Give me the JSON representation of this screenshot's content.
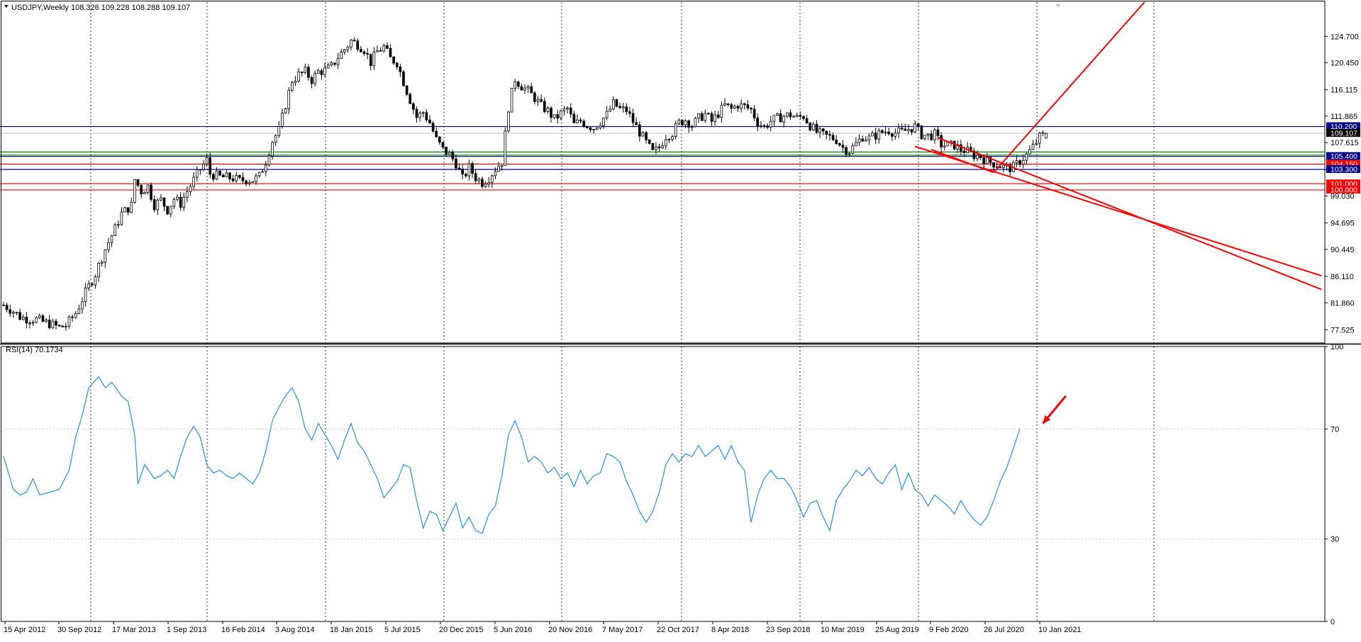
{
  "chart_data": [
    {
      "type": "candlestick",
      "title": "USDJPY,Weekly  108.326 109.228 108.288 109.107",
      "symbol": "USDJPY",
      "timeframe": "Weekly",
      "ohlc_last": {
        "open": 108.326,
        "high": 109.228,
        "low": 108.288,
        "close": 109.107
      },
      "ylim": [
        75.4,
        130.2
      ],
      "y_ticks": [
        124.7,
        120.45,
        116.115,
        111.865,
        107.615,
        103.3,
        99.03,
        94.695,
        90.445,
        86.11,
        81.86,
        77.525
      ],
      "y_tick_labels": [
        "124.700",
        "120.450",
        "116.115",
        "111.865",
        "107.615",
        "103.300",
        "99.030",
        "94.695",
        "90.445",
        "86.110",
        "81.860",
        "77.525"
      ],
      "x_tick_labels": [
        "15 Apr 2012",
        "30 Sep 2012",
        "17 Mar 2013",
        "1 Sep 2013",
        "16 Feb 2014",
        "3 Aug 2014",
        "18 Jan 2015",
        "5 Jul 2015",
        "20 Dec 2015",
        "5 Jun 2016",
        "20 Nov 2016",
        "7 May 2017",
        "22 Oct 2017",
        "8 Apr 2018",
        "23 Sep 2018",
        "10 Mar 2019",
        "25 Aug 2019",
        "9 Feb 2020",
        "26 Jul 2020",
        "10 Jan 2021"
      ],
      "close_path": [
        [
          0,
          81.5
        ],
        [
          3,
          80.5
        ],
        [
          5,
          79.6
        ],
        [
          8,
          79.2
        ],
        [
          10,
          79.2
        ],
        [
          12,
          78.8
        ],
        [
          14,
          78.5
        ],
        [
          17,
          77.9
        ],
        [
          19,
          78.2
        ],
        [
          22,
          80.2
        ],
        [
          25,
          83.5
        ],
        [
          28,
          86.5
        ],
        [
          31,
          90.5
        ],
        [
          34,
          93.8
        ],
        [
          36,
          96.2
        ],
        [
          39,
          97.5
        ],
        [
          40,
          101.7
        ],
        [
          42,
          99.8
        ],
        [
          44,
          100.6
        ],
        [
          46,
          97.6
        ],
        [
          48,
          98.4
        ],
        [
          50,
          96.8
        ],
        [
          52,
          98.6
        ],
        [
          54,
          97.8
        ],
        [
          56,
          99.8
        ],
        [
          58,
          101.6
        ],
        [
          60,
          103.4
        ],
        [
          62,
          104.8
        ],
        [
          63,
          102.6
        ],
        [
          66,
          102.1
        ],
        [
          68,
          102.0
        ],
        [
          70,
          101.9
        ],
        [
          72,
          101.5
        ],
        [
          74,
          101.7
        ],
        [
          76,
          101.6
        ],
        [
          78,
          102.2
        ],
        [
          80,
          104.6
        ],
        [
          82,
          107.9
        ],
        [
          84,
          109.6
        ],
        [
          86,
          113.7
        ],
        [
          88,
          117.6
        ],
        [
          90,
          118.5
        ],
        [
          92,
          119.0
        ],
        [
          94,
          117.7
        ],
        [
          96,
          119.0
        ],
        [
          98,
          119.2
        ],
        [
          100,
          119.8
        ],
        [
          102,
          121.4
        ],
        [
          104,
          122.6
        ],
        [
          106,
          124.0
        ],
        [
          108,
          123.4
        ],
        [
          110,
          122.6
        ],
        [
          112,
          120.5
        ],
        [
          114,
          122.3
        ],
        [
          116,
          123.0
        ],
        [
          118,
          121.1
        ],
        [
          120,
          120.5
        ],
        [
          122,
          117.4
        ],
        [
          124,
          114.5
        ],
        [
          126,
          111.7
        ],
        [
          128,
          112.5
        ],
        [
          130,
          110.8
        ],
        [
          132,
          108.1
        ],
        [
          134,
          106.5
        ],
        [
          136,
          105.7
        ],
        [
          138,
          104.3
        ],
        [
          140,
          101.8
        ],
        [
          142,
          103.6
        ],
        [
          144,
          102.0
        ],
        [
          146,
          101.2
        ],
        [
          148,
          102.0
        ],
        [
          150,
          103.4
        ],
        [
          152,
          104.5
        ],
        [
          154,
          113.3
        ],
        [
          156,
          117.8
        ],
        [
          158,
          116.7
        ],
        [
          160,
          115.9
        ],
        [
          162,
          114.8
        ],
        [
          164,
          113.5
        ],
        [
          166,
          112.7
        ],
        [
          168,
          111.4
        ],
        [
          170,
          112.3
        ],
        [
          172,
          113.1
        ],
        [
          174,
          110.5
        ],
        [
          176,
          111.1
        ],
        [
          178,
          110.4
        ],
        [
          180,
          110.0
        ],
        [
          182,
          111.0
        ],
        [
          184,
          112.1
        ],
        [
          186,
          113.9
        ],
        [
          188,
          113.0
        ],
        [
          190,
          112.8
        ],
        [
          192,
          111.0
        ],
        [
          194,
          109.3
        ],
        [
          196,
          107.6
        ],
        [
          198,
          106.0
        ],
        [
          200,
          106.8
        ],
        [
          202,
          108.7
        ],
        [
          204,
          109.2
        ],
        [
          206,
          110.8
        ],
        [
          208,
          111.3
        ],
        [
          210,
          110.4
        ],
        [
          212,
          111.5
        ],
        [
          214,
          112.2
        ],
        [
          216,
          111.0
        ],
        [
          218,
          112.3
        ],
        [
          220,
          113.6
        ],
        [
          222,
          113.0
        ],
        [
          224,
          113.7
        ],
        [
          226,
          113.4
        ],
        [
          228,
          112.9
        ],
        [
          230,
          110.9
        ],
        [
          232,
          110.1
        ],
        [
          234,
          111.1
        ],
        [
          236,
          111.5
        ],
        [
          238,
          111.9
        ],
        [
          240,
          112.1
        ],
        [
          242,
          111.6
        ],
        [
          244,
          111.9
        ],
        [
          246,
          110.4
        ],
        [
          248,
          109.3
        ],
        [
          250,
          108.8
        ],
        [
          252,
          108.5
        ],
        [
          254,
          108.1
        ],
        [
          256,
          106.8
        ],
        [
          258,
          106.3
        ],
        [
          260,
          107.4
        ],
        [
          262,
          108.6
        ],
        [
          264,
          108.3
        ],
        [
          266,
          108.8
        ],
        [
          268,
          109.3
        ],
        [
          270,
          109.6
        ],
        [
          272,
          109.2
        ],
        [
          274,
          109.3
        ],
        [
          276,
          109.8
        ],
        [
          278,
          110.2
        ],
        [
          280,
          108.9
        ],
        [
          282,
          108.7
        ],
        [
          284,
          108.9
        ],
        [
          286,
          107.3
        ],
        [
          288,
          107.1
        ],
        [
          290,
          107.2
        ],
        [
          292,
          106.5
        ],
        [
          294,
          106.2
        ],
        [
          296,
          105.6
        ],
        [
          298,
          105.4
        ],
        [
          300,
          104.6
        ],
        [
          302,
          104.3
        ],
        [
          304,
          103.9
        ],
        [
          306,
          103.5
        ],
        [
          308,
          103.6
        ],
        [
          310,
          104.7
        ],
        [
          312,
          105.6
        ],
        [
          314,
          106.9
        ],
        [
          316,
          108.5
        ],
        [
          318,
          109.107
        ]
      ],
      "highlight_levels": [
        {
          "value": 110.2,
          "label": "110.200",
          "color": "#00008b"
        },
        {
          "value": 109.107,
          "label": "109.107",
          "color": "#000000"
        },
        {
          "value": 105.4,
          "label": "105.400",
          "color": "#00008b"
        },
        {
          "value": 104.15,
          "label": "104.150",
          "color": "#ff0000"
        },
        {
          "value": 103.3,
          "label": "103.300",
          "color": "#00008b"
        },
        {
          "value": 101.0,
          "label": "101.000",
          "color": "#ff0000"
        },
        {
          "value": 100.0,
          "label": "100.000",
          "color": "#ff0000"
        }
      ],
      "horizontal_lines": [
        {
          "value": 110.2,
          "color": "#00008b"
        },
        {
          "value": 106.1,
          "color": "#008000"
        },
        {
          "value": 105.6,
          "color": "#008000"
        },
        {
          "value": 105.4,
          "color": "#00008b"
        },
        {
          "value": 104.15,
          "color": "#ff0000"
        },
        {
          "value": 103.3,
          "color": "#00008b"
        },
        {
          "value": 101.0,
          "color": "#ff0000"
        },
        {
          "value": 100.0,
          "color": "#ff0000"
        }
      ],
      "trend_lines": [
        {
          "from": [
            278,
            107.0
          ],
          "to": [
            402,
            86.2
          ],
          "color": "#ff0000"
        },
        {
          "from": [
            285,
            108.4
          ],
          "to": [
            402,
            84.0
          ],
          "color": "#ff0000"
        },
        {
          "from": [
            283,
            106.5
          ],
          "to": [
            302,
            102.8
          ],
          "color": "#ff0000"
        },
        {
          "from": [
            302,
            102.8
          ],
          "to": [
            348,
            130.2
          ],
          "color": "#ff0000"
        }
      ]
    },
    {
      "type": "line",
      "title": "RSI(14) 70.1734",
      "series": [
        {
          "name": "RSI(14)",
          "color": "#1e90ff"
        }
      ],
      "ylim": [
        0,
        100
      ],
      "y_ticks": [
        0,
        30,
        70,
        100
      ],
      "y_tick_labels": [
        "0",
        "30",
        "70",
        "100"
      ],
      "levels": [
        30,
        70
      ],
      "values": [
        [
          0,
          60
        ],
        [
          3,
          48
        ],
        [
          5,
          46
        ],
        [
          7,
          47
        ],
        [
          9,
          52
        ],
        [
          11,
          46
        ],
        [
          14,
          47
        ],
        [
          17,
          48
        ],
        [
          20,
          55
        ],
        [
          22,
          67
        ],
        [
          24,
          75
        ],
        [
          26,
          85
        ],
        [
          29,
          89
        ],
        [
          31,
          85
        ],
        [
          33,
          87
        ],
        [
          36,
          82
        ],
        [
          38,
          80
        ],
        [
          40,
          68
        ],
        [
          41,
          50
        ],
        [
          43,
          57
        ],
        [
          46,
          52
        ],
        [
          48,
          53
        ],
        [
          50,
          55
        ],
        [
          52,
          52
        ],
        [
          54,
          60
        ],
        [
          56,
          67
        ],
        [
          58,
          71
        ],
        [
          60,
          67
        ],
        [
          62,
          57
        ],
        [
          64,
          54
        ],
        [
          66,
          55
        ],
        [
          68,
          53
        ],
        [
          70,
          52
        ],
        [
          72,
          54
        ],
        [
          74,
          52
        ],
        [
          76,
          50
        ],
        [
          78,
          54
        ],
        [
          80,
          62
        ],
        [
          82,
          73
        ],
        [
          84,
          78
        ],
        [
          86,
          82
        ],
        [
          88,
          85
        ],
        [
          90,
          80
        ],
        [
          92,
          70
        ],
        [
          94,
          66
        ],
        [
          96,
          72
        ],
        [
          98,
          68
        ],
        [
          100,
          64
        ],
        [
          102,
          59
        ],
        [
          104,
          66
        ],
        [
          106,
          72
        ],
        [
          108,
          65
        ],
        [
          110,
          62
        ],
        [
          112,
          57
        ],
        [
          114,
          52
        ],
        [
          116,
          45
        ],
        [
          118,
          48
        ],
        [
          120,
          51
        ],
        [
          122,
          57
        ],
        [
          124,
          56
        ],
        [
          126,
          44
        ],
        [
          128,
          34
        ],
        [
          130,
          40
        ],
        [
          132,
          39
        ],
        [
          134,
          33
        ],
        [
          136,
          38
        ],
        [
          138,
          43
        ],
        [
          140,
          34
        ],
        [
          142,
          38
        ],
        [
          144,
          33
        ],
        [
          146,
          32
        ],
        [
          148,
          39
        ],
        [
          150,
          42
        ],
        [
          152,
          53
        ],
        [
          154,
          68
        ],
        [
          156,
          73
        ],
        [
          158,
          67
        ],
        [
          160,
          58
        ],
        [
          162,
          60
        ],
        [
          164,
          58
        ],
        [
          166,
          54
        ],
        [
          168,
          56
        ],
        [
          170,
          52
        ],
        [
          172,
          54
        ],
        [
          174,
          49
        ],
        [
          176,
          55
        ],
        [
          178,
          50
        ],
        [
          180,
          53
        ],
        [
          182,
          54
        ],
        [
          184,
          61
        ],
        [
          186,
          60
        ],
        [
          188,
          58
        ],
        [
          190,
          51
        ],
        [
          192,
          46
        ],
        [
          194,
          40
        ],
        [
          196,
          36
        ],
        [
          198,
          40
        ],
        [
          200,
          47
        ],
        [
          202,
          57
        ],
        [
          204,
          61
        ],
        [
          206,
          58
        ],
        [
          208,
          61
        ],
        [
          210,
          60
        ],
        [
          212,
          64
        ],
        [
          214,
          60
        ],
        [
          216,
          62
        ],
        [
          218,
          64
        ],
        [
          220,
          59
        ],
        [
          222,
          64
        ],
        [
          224,
          58
        ],
        [
          226,
          55
        ],
        [
          228,
          36
        ],
        [
          230,
          46
        ],
        [
          232,
          52
        ],
        [
          234,
          55
        ],
        [
          236,
          52
        ],
        [
          238,
          52
        ],
        [
          240,
          49
        ],
        [
          242,
          44
        ],
        [
          244,
          38
        ],
        [
          246,
          43
        ],
        [
          248,
          44
        ],
        [
          250,
          38
        ],
        [
          252,
          33
        ],
        [
          254,
          44
        ],
        [
          256,
          48
        ],
        [
          258,
          51
        ],
        [
          260,
          55
        ],
        [
          262,
          53
        ],
        [
          264,
          56
        ],
        [
          266,
          52
        ],
        [
          268,
          50
        ],
        [
          270,
          54
        ],
        [
          272,
          57
        ],
        [
          274,
          48
        ],
        [
          276,
          54
        ],
        [
          278,
          48
        ],
        [
          280,
          46
        ],
        [
          282,
          42
        ],
        [
          284,
          46
        ],
        [
          286,
          44
        ],
        [
          288,
          42
        ],
        [
          290,
          39
        ],
        [
          292,
          44
        ],
        [
          294,
          40
        ],
        [
          296,
          37
        ],
        [
          298,
          35
        ],
        [
          300,
          38
        ],
        [
          302,
          44
        ],
        [
          304,
          51
        ],
        [
          306,
          56
        ],
        [
          308,
          63
        ],
        [
          310,
          70.17
        ]
      ],
      "arrow": {
        "from": [
          324,
          82
        ],
        "to": [
          317,
          72
        ],
        "color": "#ff0000"
      }
    }
  ]
}
